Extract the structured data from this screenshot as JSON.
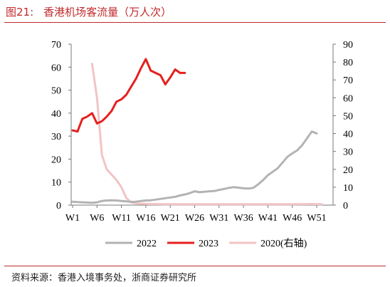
{
  "header": {
    "figure_number": "图21:",
    "title": "香港机场客流量（万人次）"
  },
  "footer": {
    "source": "资料来源：香港入境事务处，浙商证券研究所"
  },
  "chart_data": {
    "type": "line",
    "title": "香港机场客流量（万人次）",
    "x_ticks": [
      "W1",
      "W6",
      "W11",
      "W16",
      "W21",
      "W26",
      "W31",
      "W36",
      "W41",
      "W46",
      "W51"
    ],
    "left_axis": {
      "ylim": [
        0,
        70
      ],
      "ticks": [
        0,
        10,
        20,
        30,
        40,
        50,
        60,
        70
      ]
    },
    "right_axis": {
      "ylim": [
        0,
        90
      ],
      "ticks": [
        0,
        10,
        20,
        30,
        40,
        50,
        60,
        70,
        80,
        90
      ]
    },
    "grid": false,
    "legend_position": "bottom",
    "series": [
      {
        "name": "2022",
        "axis": "left",
        "color": "#b3b3b3",
        "points": [
          [
            1,
            1.5
          ],
          [
            2,
            1.3
          ],
          [
            3,
            1.2
          ],
          [
            4,
            1.1
          ],
          [
            5,
            1.0
          ],
          [
            6,
            1.2
          ],
          [
            7,
            1.8
          ],
          [
            8,
            2.0
          ],
          [
            9,
            2.1
          ],
          [
            10,
            2.0
          ],
          [
            11,
            1.8
          ],
          [
            12,
            1.6
          ],
          [
            13,
            1.4
          ],
          [
            14,
            1.5
          ],
          [
            15,
            1.8
          ],
          [
            16,
            2.0
          ],
          [
            17,
            2.1
          ],
          [
            18,
            2.4
          ],
          [
            19,
            2.7
          ],
          [
            20,
            3.0
          ],
          [
            21,
            3.3
          ],
          [
            22,
            3.6
          ],
          [
            23,
            4.2
          ],
          [
            24,
            4.6
          ],
          [
            25,
            5.2
          ],
          [
            26,
            6.0
          ],
          [
            27,
            5.6
          ],
          [
            28,
            5.8
          ],
          [
            29,
            6.0
          ],
          [
            30,
            6.1
          ],
          [
            31,
            6.6
          ],
          [
            32,
            7.0
          ],
          [
            33,
            7.5
          ],
          [
            34,
            7.8
          ],
          [
            35,
            7.6
          ],
          [
            36,
            7.3
          ],
          [
            37,
            7.2
          ],
          [
            38,
            7.5
          ],
          [
            39,
            9.0
          ],
          [
            40,
            10.8
          ],
          [
            41,
            13.0
          ],
          [
            42,
            14.5
          ],
          [
            43,
            16.0
          ],
          [
            44,
            18.5
          ],
          [
            45,
            21.0
          ],
          [
            46,
            22.5
          ],
          [
            47,
            23.8
          ],
          [
            48,
            26.0
          ],
          [
            49,
            29.0
          ],
          [
            50,
            32.0
          ],
          [
            51,
            31.2
          ]
        ]
      },
      {
        "name": "2023",
        "axis": "left",
        "color": "#e5201f",
        "points": [
          [
            1,
            32.5
          ],
          [
            2,
            32.0
          ],
          [
            3,
            37.5
          ],
          [
            4,
            38.5
          ],
          [
            5,
            40.0
          ],
          [
            6,
            35.5
          ],
          [
            7,
            36.5
          ],
          [
            8,
            38.5
          ],
          [
            9,
            41.0
          ],
          [
            10,
            45.0
          ],
          [
            11,
            46.0
          ],
          [
            12,
            48.0
          ],
          [
            13,
            51.5
          ],
          [
            14,
            55.0
          ],
          [
            15,
            59.5
          ],
          [
            16,
            63.5
          ],
          [
            17,
            58.5
          ],
          [
            18,
            57.5
          ],
          [
            19,
            56.5
          ],
          [
            20,
            52.5
          ],
          [
            21,
            55.5
          ],
          [
            22,
            59.0
          ],
          [
            23,
            57.5
          ],
          [
            24,
            57.5
          ]
        ]
      },
      {
        "name": "2020(右轴)",
        "axis": "right",
        "color": "#f2c4c4",
        "points": [
          [
            5,
            79
          ],
          [
            6,
            60
          ],
          [
            7,
            28
          ],
          [
            8,
            20
          ],
          [
            9,
            17
          ],
          [
            10,
            14
          ],
          [
            11,
            10
          ],
          [
            12,
            4
          ],
          [
            13,
            1.5
          ],
          [
            14,
            1
          ],
          [
            15,
            0.8
          ],
          [
            16,
            0.7
          ],
          [
            17,
            0.6
          ],
          [
            18,
            0.6
          ],
          [
            20,
            0.5
          ],
          [
            25,
            0.5
          ],
          [
            30,
            0.5
          ],
          [
            35,
            0.5
          ],
          [
            40,
            0.5
          ],
          [
            45,
            0.5
          ],
          [
            50,
            0.6
          ],
          [
            52,
            0.5
          ]
        ]
      }
    ]
  }
}
